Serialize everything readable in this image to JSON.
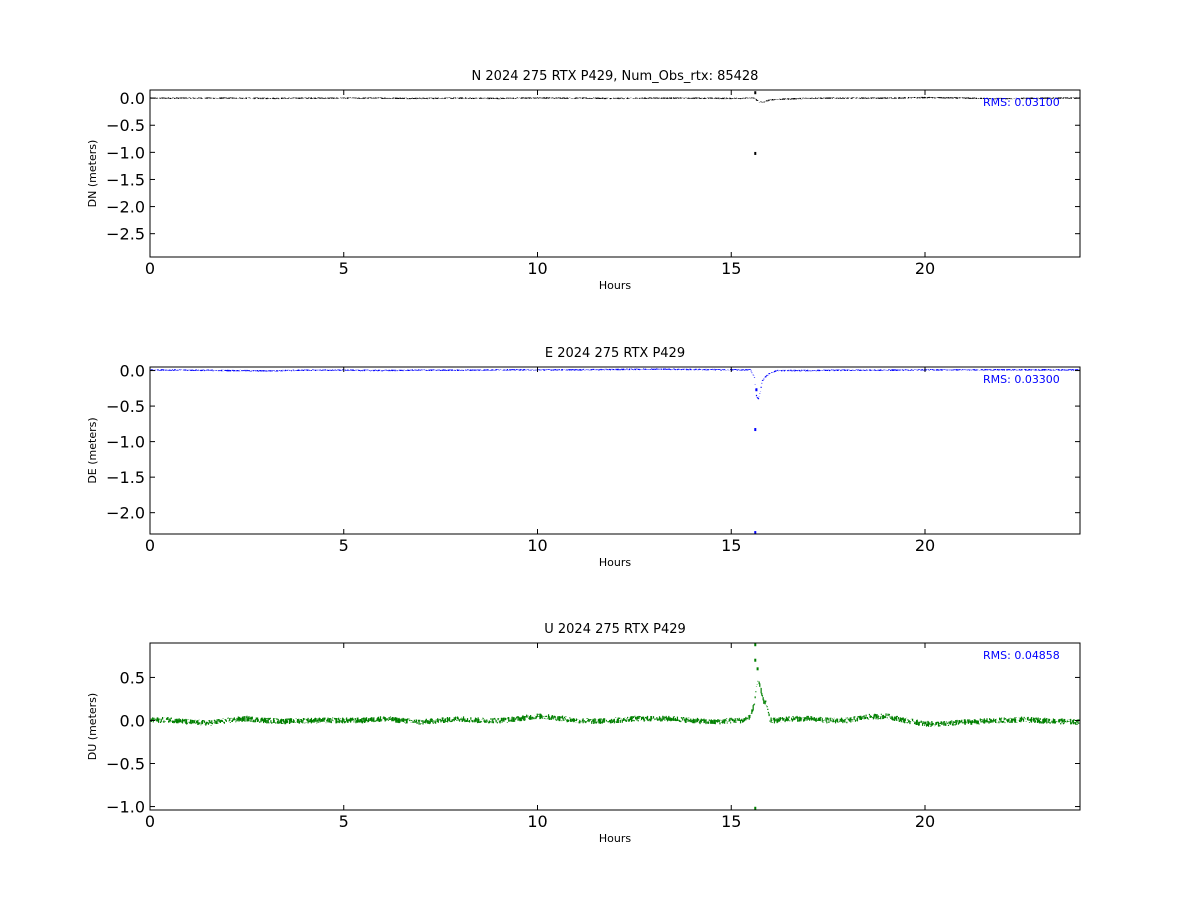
{
  "chart_data": [
    {
      "type": "scatter",
      "component": "N",
      "title": "N 2024 275 RTX  P429, Num_Obs_rtx: 85428",
      "xlabel": "Hours",
      "ylabel": "DN (meters)",
      "xlim": [
        0,
        24
      ],
      "ylim": [
        -2.93,
        0.15
      ],
      "xticks": [
        0,
        5,
        10,
        15,
        20
      ],
      "xtick_labels": [
        "0",
        "5",
        "10",
        "15",
        "20"
      ],
      "yticks": [
        0.0,
        -0.5,
        -1.0,
        -1.5,
        -2.0,
        -2.5
      ],
      "ytick_labels": [
        "0.0",
        "−0.5",
        "−1.0",
        "−1.5",
        "−2.0",
        "−2.5"
      ],
      "color": "#000000",
      "rms_text": "RMS:  0.03100",
      "rms_color": "#0000ff",
      "series": [
        {
          "x": [
            0,
            1,
            2,
            3,
            4,
            5,
            6,
            7,
            8,
            9,
            10,
            11,
            12,
            13,
            14,
            15,
            15.5,
            15.6,
            15.7,
            15.8,
            16,
            17,
            18,
            19,
            20,
            21,
            22,
            23,
            24
          ],
          "y": [
            0.0,
            0.0,
            0.0,
            -0.005,
            0.0,
            0.0,
            0.0,
            -0.005,
            0.0,
            -0.005,
            0.005,
            0.0,
            -0.005,
            0.0,
            0.0,
            -0.005,
            0.0,
            0.0,
            -0.06,
            -0.08,
            -0.03,
            0.0,
            0.0,
            0.0,
            0.01,
            0.0,
            -0.01,
            0.0,
            0.0
          ],
          "spread": 0.015
        }
      ],
      "outliers": [
        {
          "x": 15.62,
          "y": -1.02
        },
        {
          "x": 15.62,
          "y": 0.1
        }
      ]
    },
    {
      "type": "scatter",
      "component": "E",
      "title": "E 2024 275 RTX  P429",
      "xlabel": "Hours",
      "ylabel": "DE (meters)",
      "xlim": [
        0,
        24
      ],
      "ylim": [
        -2.3,
        0.05
      ],
      "xticks": [
        0,
        5,
        10,
        15,
        20
      ],
      "xtick_labels": [
        "0",
        "5",
        "10",
        "15",
        "20"
      ],
      "yticks": [
        0.0,
        -0.5,
        -1.0,
        -1.5,
        -2.0
      ],
      "ytick_labels": [
        "0.0",
        "−0.5",
        "−1.0",
        "−1.5",
        "−2.0"
      ],
      "color": "#0000ff",
      "rms_text": "RMS:  0.03300",
      "rms_color": "#0000ff",
      "series": [
        {
          "x": [
            0,
            1,
            2,
            3,
            4,
            5,
            6,
            7,
            8,
            9,
            10,
            11,
            12,
            13,
            14,
            15,
            15.5,
            15.6,
            15.65,
            15.7,
            15.75,
            15.8,
            15.9,
            16.0,
            16.2,
            17,
            18,
            19,
            20,
            21,
            22,
            23,
            24
          ],
          "y": [
            0.01,
            0.005,
            0.0,
            -0.005,
            0.005,
            0.005,
            0.0,
            0.005,
            0.005,
            0.01,
            0.01,
            0.01,
            0.015,
            0.02,
            0.015,
            0.01,
            0.01,
            -0.1,
            -0.35,
            -0.4,
            -0.3,
            -0.15,
            -0.08,
            -0.03,
            0.0,
            0.0,
            0.005,
            0.005,
            0.01,
            0.01,
            0.01,
            0.01,
            0.01
          ],
          "spread": 0.012
        }
      ],
      "outliers": [
        {
          "x": 15.62,
          "y": -0.83
        },
        {
          "x": 15.65,
          "y": -0.27
        },
        {
          "x": 15.62,
          "y": -2.28
        }
      ]
    },
    {
      "type": "scatter",
      "component": "U",
      "title": "U 2024 275 RTX  P429",
      "xlabel": "Hours",
      "ylabel": "DU (meters)",
      "xlim": [
        0,
        24
      ],
      "ylim": [
        -1.04,
        0.9
      ],
      "xticks": [
        0,
        5,
        10,
        15,
        20
      ],
      "xtick_labels": [
        "0",
        "5",
        "10",
        "15",
        "20"
      ],
      "yticks": [
        0.5,
        0.0,
        -0.5,
        -1.0
      ],
      "ytick_labels": [
        "0.5",
        "0.0",
        "−0.5",
        "−1.0"
      ],
      "color": "#008000",
      "rms_text": "RMS:  0.04858",
      "rms_color": "#0000ff",
      "series": [
        {
          "x": [
            0,
            0.5,
            1,
            1.5,
            2,
            2.5,
            3,
            3.5,
            4,
            4.5,
            5,
            5.5,
            6,
            6.5,
            7,
            7.5,
            8,
            8.5,
            9,
            9.5,
            10,
            10.5,
            11,
            11.5,
            12,
            12.5,
            13,
            13.5,
            14,
            14.5,
            15,
            15.3,
            15.5,
            15.6,
            15.65,
            15.7,
            15.75,
            15.8,
            15.85,
            15.9,
            16.0,
            16.2,
            16.5,
            17,
            17.5,
            18,
            18.5,
            19,
            19.5,
            20,
            20.5,
            21,
            21.5,
            22,
            22.5,
            23,
            23.5,
            24
          ],
          "y": [
            0.0,
            0.01,
            -0.02,
            -0.03,
            0.0,
            0.02,
            0.0,
            -0.01,
            0.0,
            0.0,
            0.0,
            0.0,
            0.02,
            0.0,
            -0.02,
            0.0,
            0.02,
            0.0,
            0.0,
            0.02,
            0.05,
            0.03,
            0.0,
            -0.01,
            0.0,
            0.02,
            0.02,
            0.02,
            0.0,
            -0.02,
            0.0,
            0.0,
            0.05,
            0.2,
            0.4,
            0.45,
            0.38,
            0.3,
            0.2,
            0.2,
            0.0,
            0.0,
            0.02,
            0.02,
            0.0,
            0.0,
            0.04,
            0.05,
            0.0,
            -0.04,
            -0.04,
            -0.02,
            -0.01,
            0.0,
            0.01,
            0.0,
            -0.01,
            -0.02
          ],
          "spread": 0.035
        }
      ],
      "outliers": [
        {
          "x": 15.62,
          "y": 0.88
        },
        {
          "x": 15.62,
          "y": 0.7
        },
        {
          "x": 15.68,
          "y": 0.6
        },
        {
          "x": 15.62,
          "y": -1.02
        }
      ]
    }
  ]
}
